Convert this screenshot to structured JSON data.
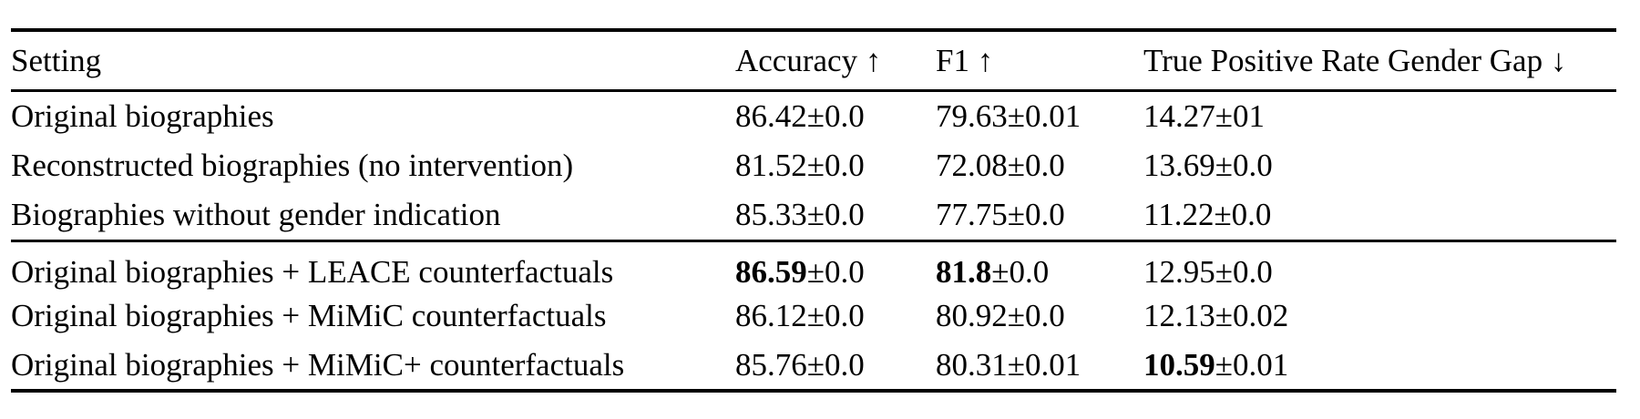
{
  "table": {
    "columns": [
      {
        "label": "Setting"
      },
      {
        "label": "Accuracy ↑"
      },
      {
        "label": "F1 ↑"
      },
      {
        "label": "True Positive Rate Gender Gap ↓"
      }
    ],
    "groups": [
      {
        "rows": [
          {
            "setting": "Original biographies",
            "accuracy": {
              "value": "86.42",
              "pm": "±0.0",
              "style": "normal"
            },
            "f1": {
              "value": "79.63",
              "pm": "±0.01",
              "style": "normal"
            },
            "tpr_gap": {
              "value": "14.27",
              "pm": "±01",
              "style": "normal"
            }
          },
          {
            "setting": "Reconstructed biographies (no intervention)",
            "accuracy": {
              "value": "81.52",
              "pm": "±0.0",
              "style": "normal"
            },
            "f1": {
              "value": "72.08",
              "pm": "±0.0",
              "style": "normal"
            },
            "tpr_gap": {
              "value": "13.69",
              "pm": "±0.0",
              "style": "normal"
            }
          },
          {
            "setting": "Biographies without gender indication",
            "accuracy": {
              "value": "85.33",
              "pm": "±0.0",
              "style": "normal"
            },
            "f1": {
              "value": "77.75",
              "pm": "±0.0",
              "style": "normal"
            },
            "tpr_gap": {
              "value": "11.22",
              "pm": "±0.0",
              "style": "normal"
            }
          }
        ]
      },
      {
        "rows": [
          {
            "setting": "Original biographies + LEACE counterfactuals",
            "accuracy": {
              "value": "86.59",
              "pm": "±0.0",
              "style": "bold"
            },
            "f1": {
              "value": "81.8",
              "pm": "±0.0",
              "style": "bold"
            },
            "tpr_gap": {
              "value": "12.95",
              "pm": "±0.0",
              "style": "normal"
            }
          },
          {
            "setting": "Original biographies + MiMiC counterfactuals",
            "accuracy": {
              "value": "86.12",
              "pm": "±0.0",
              "style": "normal"
            },
            "f1": {
              "value": "80.92",
              "pm": "±0.0",
              "style": "normal"
            },
            "tpr_gap": {
              "value": "12.13",
              "pm": "±0.02",
              "style": "normal"
            }
          },
          {
            "setting": "Original biographies + MiMiC+ counterfactuals",
            "accuracy": {
              "value": "85.76",
              "pm": "±0.0",
              "style": "normal"
            },
            "f1": {
              "value": "80.31",
              "pm": "±0.01",
              "style": "normal"
            },
            "tpr_gap": {
              "value": "10.59",
              "pm": "±0.01",
              "style": "bold"
            }
          }
        ]
      }
    ]
  }
}
